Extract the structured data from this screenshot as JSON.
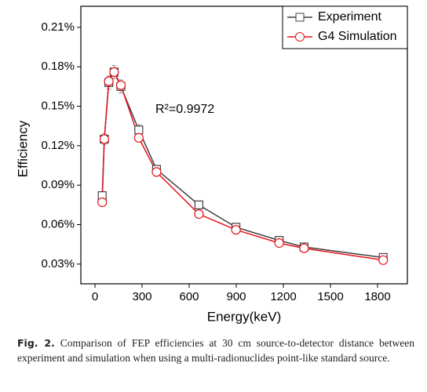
{
  "chart_data": {
    "type": "line",
    "x_label": "Energy(keV)",
    "y_label": "Efficiency",
    "annotation": "R²=0.9972",
    "x": [
      46,
      59.5,
      88,
      122,
      165,
      279,
      392,
      662,
      898,
      1173,
      1332,
      1836
    ],
    "series": [
      {
        "name": "Experiment",
        "color": "#404040",
        "marker": "square",
        "values": [
          0.082,
          0.125,
          0.168,
          0.176,
          0.165,
          0.132,
          0.102,
          0.075,
          0.058,
          0.048,
          0.043,
          0.035
        ],
        "errors": [
          0.003,
          0.004,
          0.005,
          0.005,
          0.005,
          0.004,
          0.003,
          0.002,
          0.002,
          0.001,
          0.001,
          0.001
        ]
      },
      {
        "name": "G4 Simulation",
        "color": "#e8141c",
        "marker": "circle",
        "values": [
          0.077,
          0.125,
          0.169,
          0.176,
          0.166,
          0.126,
          0.1,
          0.068,
          0.056,
          0.046,
          0.042,
          0.033
        ]
      }
    ],
    "xlim": [
      -90,
      1990
    ],
    "xticks": [
      0,
      300,
      600,
      900,
      1200,
      1500,
      1800
    ],
    "ylim": [
      0.015,
      0.226
    ],
    "yticks": [
      {
        "value": 0.03,
        "label": "0.03%"
      },
      {
        "value": 0.06,
        "label": "0.06%"
      },
      {
        "value": 0.09,
        "label": "0.09%"
      },
      {
        "value": 0.12,
        "label": "0.12%"
      },
      {
        "value": 0.15,
        "label": "0.15%"
      },
      {
        "value": 0.18,
        "label": "0.18%"
      },
      {
        "value": 0.21,
        "label": "0.21%"
      }
    ],
    "legend": "upper right"
  },
  "caption": {
    "label": "Fig. 2.",
    "text": "Comparison of FEP efficiencies at 30 cm source-to-detector distance between experiment and simulation when using a multi-radionuclides point-like standard source."
  }
}
